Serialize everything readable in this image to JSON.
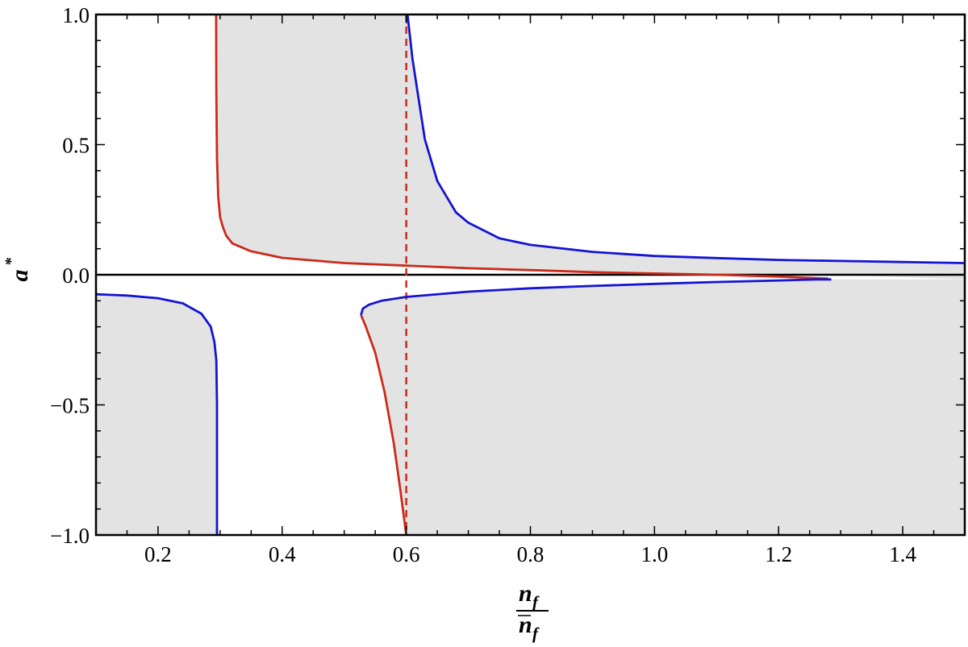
{
  "chart_data": {
    "type": "line",
    "title": "",
    "xlabel": {
      "numerator": "n",
      "numerator_sub": "f",
      "denominator": "n",
      "denominator_sub": "f",
      "denominator_overbar": true
    },
    "ylabel": {
      "base": "a",
      "superscript": "*"
    },
    "xlim": [
      0.1,
      1.5
    ],
    "ylim": [
      -1.0,
      1.0
    ],
    "x_ticks": [
      0.2,
      0.4,
      0.6,
      0.8,
      1.0,
      1.2,
      1.4
    ],
    "x_tick_labels": [
      "0.2",
      "0.4",
      "0.6",
      "0.8",
      "1.0",
      "1.2",
      "1.4"
    ],
    "y_ticks": [
      1.0,
      0.5,
      0.0,
      -0.5,
      -1.0
    ],
    "y_tick_labels": [
      "1.0",
      "0.5",
      "0.0",
      "−0.5",
      "−1.0"
    ],
    "grid": false,
    "colors": {
      "red": "#cc2a1a",
      "blue": "#1414d2",
      "shade": "#e3e3e3",
      "axis": "#000000"
    },
    "horizontal_line": 0.0,
    "vertical_dashed_line": {
      "x": 0.6,
      "color": "red"
    },
    "series": [
      {
        "color": "red",
        "style": "solid",
        "x": [
          0.2935,
          0.294,
          0.295,
          0.297,
          0.3,
          0.305,
          0.31,
          0.32,
          0.35,
          0.4,
          0.5,
          0.6,
          0.7,
          0.8,
          0.9,
          1.0,
          1.1,
          1.2,
          1.25,
          1.28
        ],
        "y": [
          1.0,
          0.7,
          0.45,
          0.3,
          0.22,
          0.18,
          0.15,
          0.12,
          0.09,
          0.065,
          0.045,
          0.035,
          0.025,
          0.018,
          0.01,
          0.005,
          0.0,
          -0.007,
          -0.012,
          -0.015
        ]
      },
      {
        "color": "blue",
        "style": "solid",
        "x": [
          0.602,
          0.61,
          0.63,
          0.65,
          0.68,
          0.7,
          0.75,
          0.8,
          0.9,
          1.0,
          1.1,
          1.2,
          1.3,
          1.4,
          1.5
        ],
        "y": [
          1.0,
          0.83,
          0.52,
          0.36,
          0.24,
          0.2,
          0.14,
          0.115,
          0.088,
          0.072,
          0.064,
          0.057,
          0.053,
          0.049,
          0.045
        ]
      },
      {
        "color": "blue",
        "style": "solid",
        "x": [
          0.1,
          0.15,
          0.2,
          0.24,
          0.27,
          0.285,
          0.291,
          0.294,
          0.295,
          0.295
        ],
        "y": [
          -0.075,
          -0.08,
          -0.09,
          -0.11,
          -0.15,
          -0.2,
          -0.26,
          -0.33,
          -0.5,
          -1.0
        ]
      },
      {
        "color": "blue",
        "style": "solid",
        "x": [
          0.527,
          0.53,
          0.54,
          0.56,
          0.6,
          0.7,
          0.8,
          0.9,
          1.0,
          1.1,
          1.2,
          1.26,
          1.285
        ],
        "y": [
          -0.155,
          -0.13,
          -0.115,
          -0.1,
          -0.085,
          -0.065,
          -0.052,
          -0.043,
          -0.035,
          -0.028,
          -0.022,
          -0.018,
          -0.018
        ]
      },
      {
        "color": "red",
        "style": "solid",
        "x": [
          0.527,
          0.535,
          0.55,
          0.565,
          0.58,
          0.59,
          0.6
        ],
        "y": [
          -0.155,
          -0.2,
          -0.3,
          -0.45,
          -0.65,
          -0.82,
          -1.0
        ]
      }
    ],
    "shaded_regions": [
      {
        "color": "shade",
        "description_ref": "upper band between red and blue curves"
      },
      {
        "color": "shade",
        "description_ref": "lower left region"
      },
      {
        "color": "shade",
        "description_ref": "lower right region"
      }
    ]
  }
}
